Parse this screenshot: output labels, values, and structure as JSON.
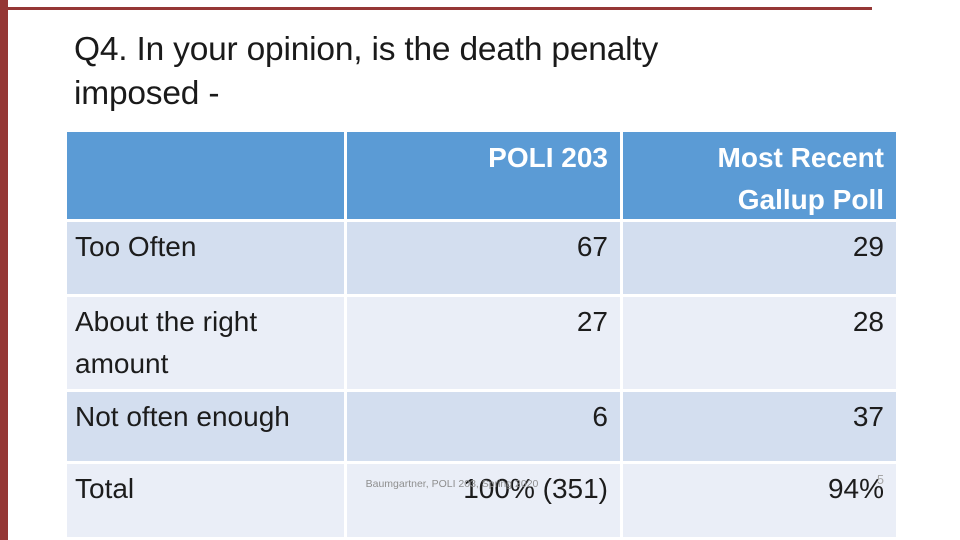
{
  "slide": {
    "title_line1": "Q4. In your opinion, is the death penalty",
    "title_line2": "imposed -",
    "footer_citation": "Baumgartner, POLI 203, Spring 2020",
    "page_number": "5"
  },
  "colors": {
    "accent_red": "#953735",
    "header_bg": "#5b9bd5",
    "header_text": "#ffffff",
    "band_dark": "#d3deef",
    "band_light": "#eaeef7",
    "body_text": "#1c1c1c",
    "footer_gray": "#8f8f8f",
    "page_number_gray": "#a6a6a6"
  },
  "table": {
    "header": {
      "col1": "",
      "col2": "POLI 203",
      "col3_line1": "Most Recent",
      "col3_line2": "Gallup Poll"
    },
    "rows": [
      {
        "label": "Too Often",
        "poli203": "67",
        "gallup": "29"
      },
      {
        "label": "About the right amount",
        "poli203": "27",
        "gallup": "28"
      },
      {
        "label": "Not often enough",
        "poli203": "6",
        "gallup": "37"
      },
      {
        "label": "Total",
        "poli203": "100% (351)",
        "gallup": "94%"
      }
    ]
  }
}
